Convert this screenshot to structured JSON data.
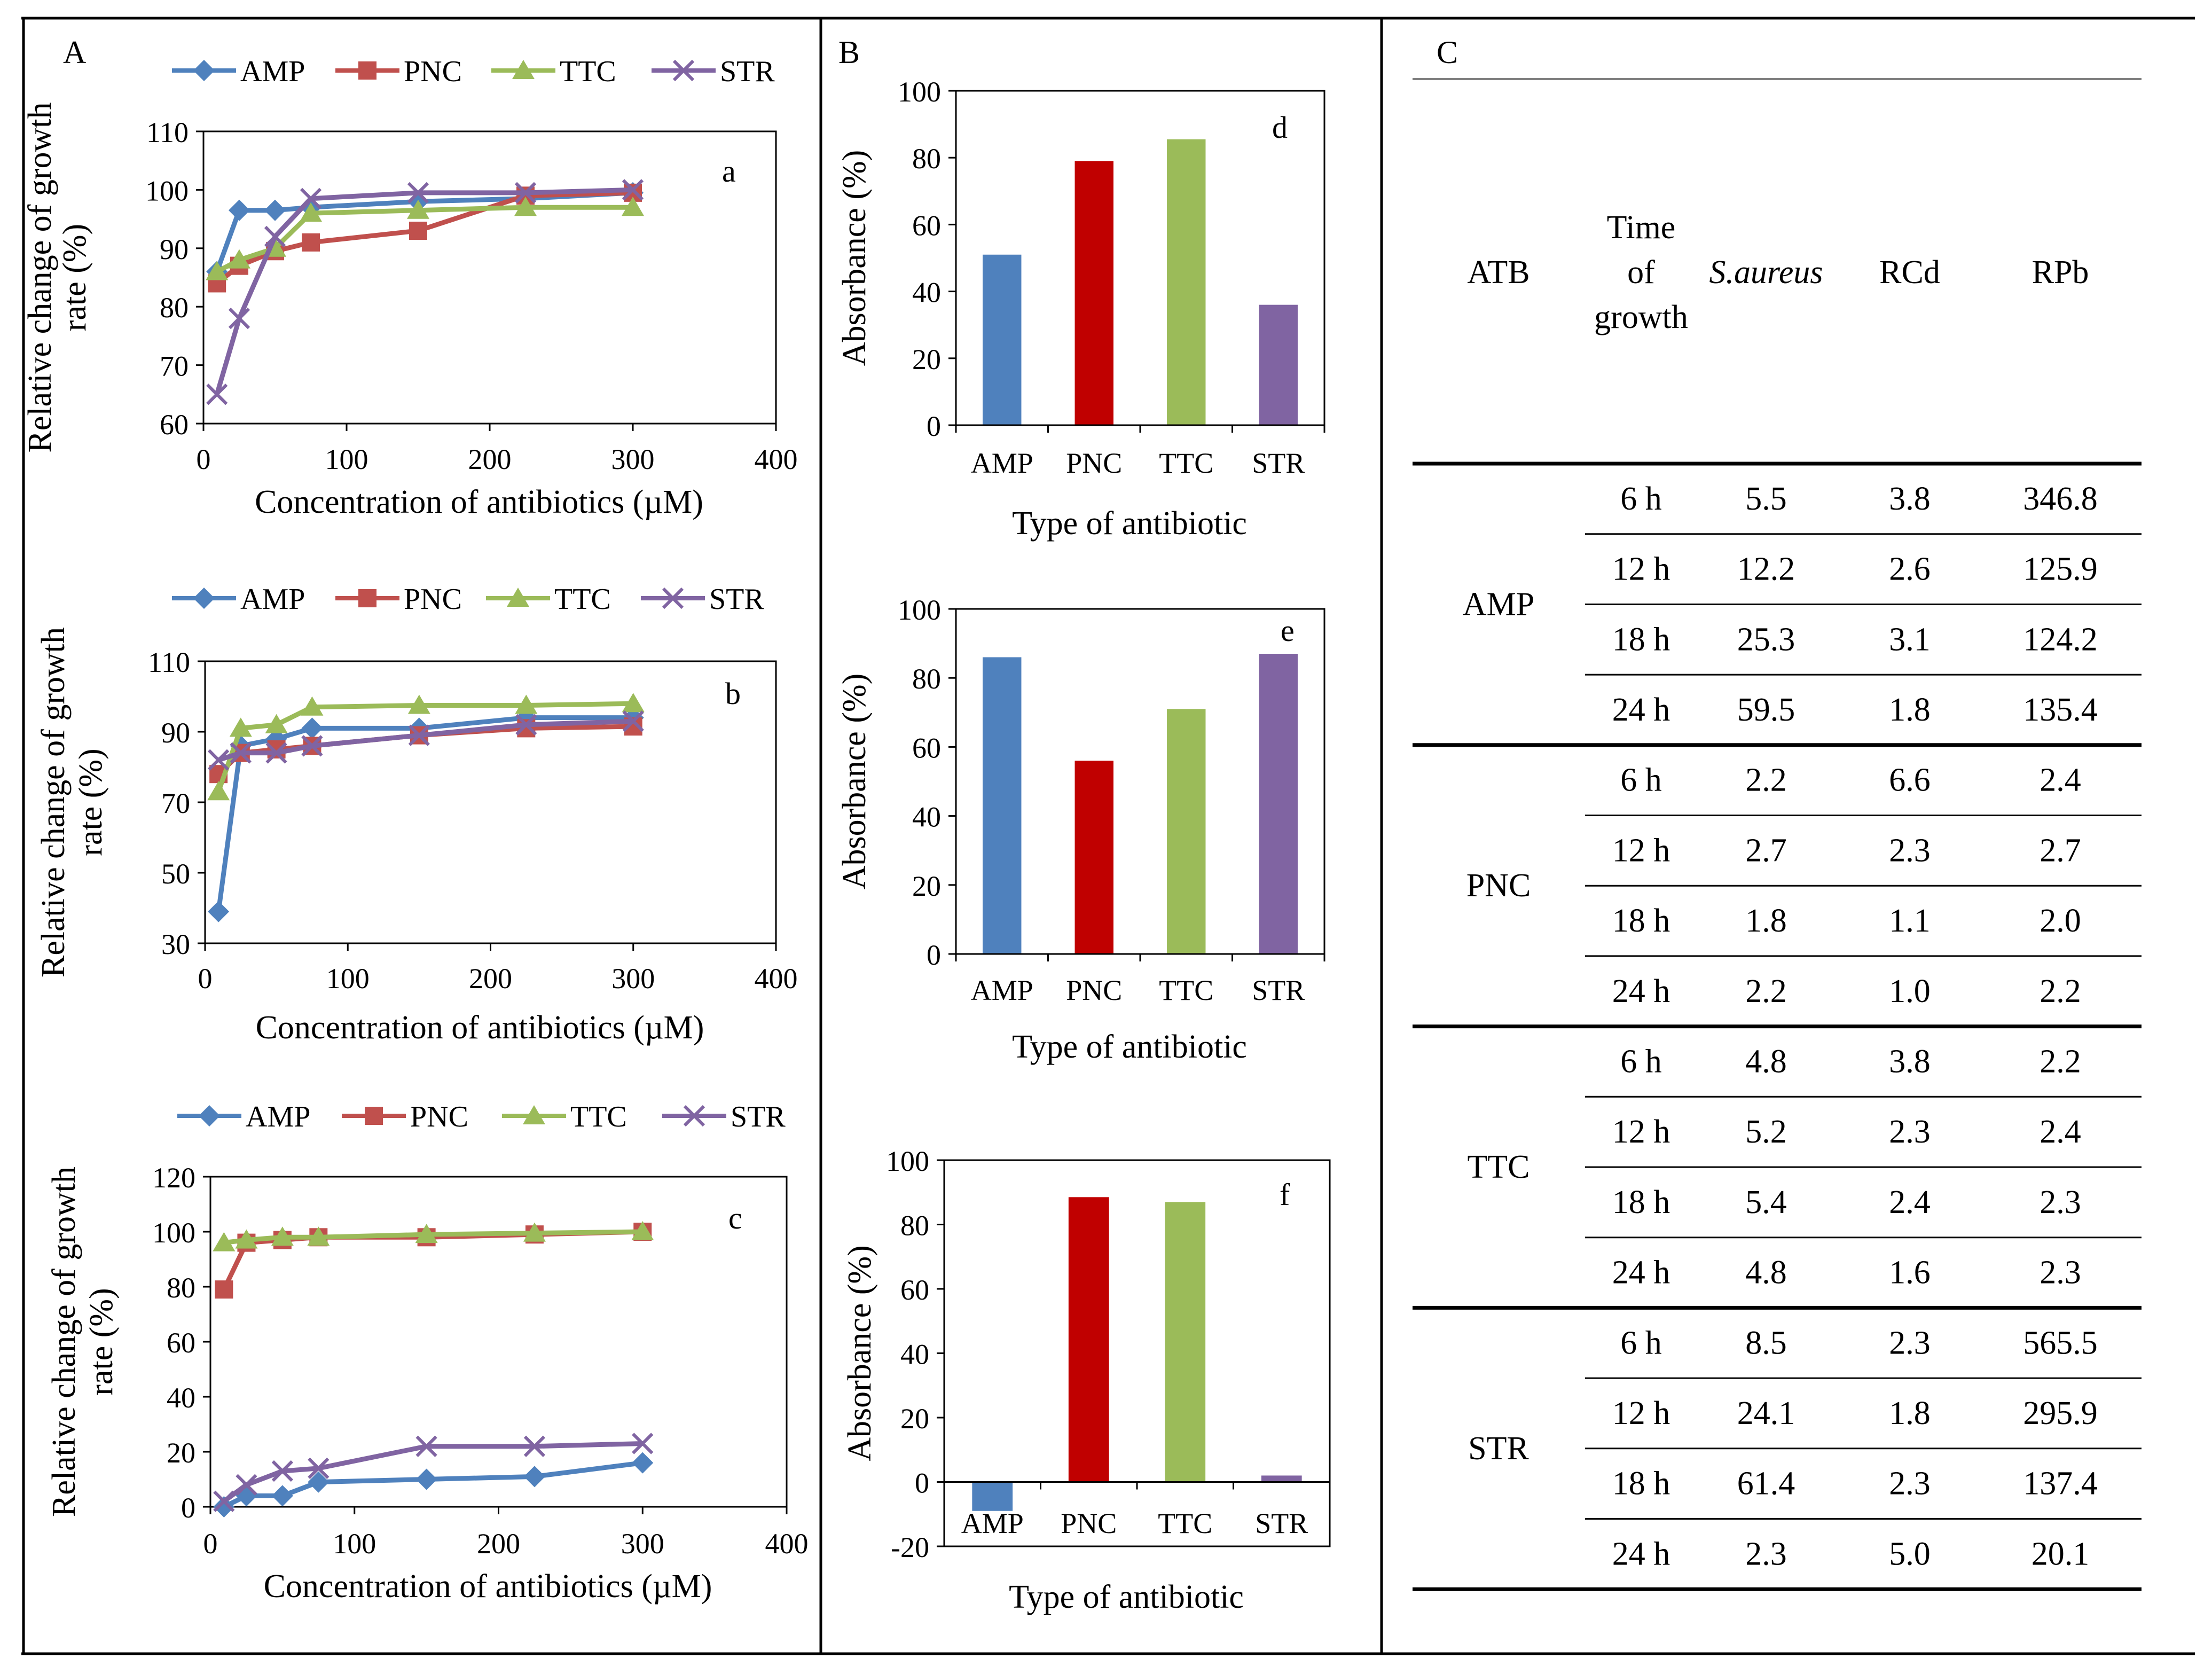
{
  "panel_labels": {
    "A": "A",
    "B": "B",
    "C": "C"
  },
  "colors": {
    "AMP": "#4F81BD",
    "PNC": "#C0504D",
    "TTC": "#9BBB59",
    "STR": "#8064A2",
    "bar_PNC": "#C00000",
    "bar_TTC": "#9BBB59"
  },
  "chart_data": [
    {
      "id": "a",
      "type": "line",
      "label": "a",
      "xlabel": "Concentration of antibiotics (µM)",
      "ylabel": [
        "Relative change of growth",
        "rate (%)"
      ],
      "xlim": [
        0,
        400
      ],
      "xticks": [
        0,
        100,
        200,
        300,
        400
      ],
      "ylim": [
        60,
        110
      ],
      "yticks": [
        60,
        70,
        80,
        90,
        100,
        110
      ],
      "legend": [
        "AMP",
        "PNC",
        "TTC",
        "STR"
      ],
      "series": [
        {
          "name": "AMP",
          "marker": "diamond",
          "x": [
            9.4,
            25,
            50,
            75,
            150,
            225,
            300
          ],
          "y": [
            86,
            96.5,
            96.5,
            97,
            98,
            98.5,
            99.5
          ]
        },
        {
          "name": "PNC",
          "marker": "square",
          "x": [
            9.4,
            25,
            50,
            75,
            150,
            225,
            300
          ],
          "y": [
            84,
            87,
            89.5,
            91,
            93,
            99,
            99.5
          ]
        },
        {
          "name": "TTC",
          "marker": "triangle",
          "x": [
            9.4,
            25,
            50,
            75,
            150,
            225,
            300
          ],
          "y": [
            86,
            88,
            90,
            96,
            96.5,
            97,
            97
          ]
        },
        {
          "name": "STR",
          "marker": "x",
          "x": [
            9.4,
            25,
            50,
            75,
            150,
            225,
            300
          ],
          "y": [
            65,
            78,
            92,
            98.5,
            99.5,
            99.5,
            100
          ]
        }
      ]
    },
    {
      "id": "b",
      "type": "line",
      "label": "b",
      "xlabel": "Concentration of antibiotics (µM)",
      "ylabel": [
        "Relative change of growth",
        "rate (%)"
      ],
      "xlim": [
        0,
        400
      ],
      "xticks": [
        0,
        100,
        200,
        300,
        400
      ],
      "ylim": [
        30,
        110
      ],
      "yticks": [
        30,
        50,
        70,
        90,
        110
      ],
      "legend": [
        "AMP",
        "PNC",
        "TTC",
        "STR"
      ],
      "series": [
        {
          "name": "AMP",
          "marker": "diamond",
          "x": [
            9.4,
            25,
            50,
            75,
            150,
            225,
            300
          ],
          "y": [
            39,
            86,
            88,
            91,
            91,
            94,
            94
          ]
        },
        {
          "name": "PNC",
          "marker": "square",
          "x": [
            9.4,
            25,
            50,
            75,
            150,
            225,
            300
          ],
          "y": [
            78,
            84,
            85,
            86,
            89,
            91,
            91.5
          ]
        },
        {
          "name": "TTC",
          "marker": "triangle",
          "x": [
            9.4,
            25,
            50,
            75,
            150,
            225,
            300
          ],
          "y": [
            73,
            91,
            92,
            97,
            97.5,
            97.5,
            98
          ]
        },
        {
          "name": "STR",
          "marker": "x",
          "x": [
            9.4,
            25,
            50,
            75,
            150,
            225,
            300
          ],
          "y": [
            82,
            84,
            84,
            86,
            89,
            92,
            93
          ]
        }
      ]
    },
    {
      "id": "c",
      "type": "line",
      "label": "c",
      "xlabel": "Concentration of antibiotics (µM)",
      "ylabel": [
        "Relative change of growth",
        "rate (%)"
      ],
      "xlim": [
        0,
        400
      ],
      "xticks": [
        0,
        100,
        200,
        300,
        400
      ],
      "ylim": [
        0,
        120
      ],
      "yticks": [
        0,
        20,
        40,
        60,
        80,
        100,
        120
      ],
      "legend": [
        "AMP",
        "PNC",
        "TTC",
        "STR"
      ],
      "series": [
        {
          "name": "AMP",
          "marker": "diamond",
          "x": [
            9.4,
            25,
            50,
            75,
            150,
            225,
            300
          ],
          "y": [
            0,
            4,
            4,
            9,
            10,
            11,
            16
          ]
        },
        {
          "name": "PNC",
          "marker": "square",
          "x": [
            9.4,
            25,
            50,
            75,
            150,
            225,
            300
          ],
          "y": [
            79,
            96,
            97,
            98,
            98,
            99,
            100
          ]
        },
        {
          "name": "TTC",
          "marker": "triangle",
          "x": [
            9.4,
            25,
            50,
            75,
            150,
            225,
            300
          ],
          "y": [
            96,
            97,
            98,
            98,
            99,
            99.5,
            100
          ]
        },
        {
          "name": "STR",
          "marker": "x",
          "x": [
            9.4,
            25,
            50,
            75,
            150,
            225,
            300
          ],
          "y": [
            2,
            8,
            13,
            14,
            22,
            22,
            23
          ]
        }
      ]
    },
    {
      "id": "d",
      "type": "bar",
      "label": "d",
      "xlabel": "Type of antibiotic",
      "ylabel": "Absorbance (%)",
      "categories": [
        "AMP",
        "PNC",
        "TTC",
        "STR"
      ],
      "values": [
        51,
        79,
        85.5,
        36
      ],
      "ylim": [
        0,
        100
      ],
      "yticks": [
        0,
        20,
        40,
        60,
        80,
        100
      ]
    },
    {
      "id": "e",
      "type": "bar",
      "label": "e",
      "xlabel": "Type of antibiotic",
      "ylabel": "Absorbance (%)",
      "categories": [
        "AMP",
        "PNC",
        "TTC",
        "STR"
      ],
      "values": [
        86,
        56,
        71,
        87
      ],
      "ylim": [
        0,
        100
      ],
      "yticks": [
        0,
        20,
        40,
        60,
        80,
        100
      ]
    },
    {
      "id": "f",
      "type": "bar",
      "label": "f",
      "xlabel": "Type of antibiotic",
      "ylabel": "Absorbance (%)",
      "categories": [
        "AMP",
        "PNC",
        "TTC",
        "STR"
      ],
      "values": [
        -9,
        88.5,
        87,
        2
      ],
      "ylim": [
        -20,
        100
      ],
      "yticks": [
        -20,
        0,
        20,
        40,
        60,
        80,
        100
      ]
    },
    {
      "id": "table",
      "type": "table",
      "headers": {
        "atb": "ATB",
        "time": [
          "Time",
          "of",
          "growth"
        ],
        "saureus": "S.aureus",
        "rcd": "RCd",
        "rpb": "RPb"
      },
      "groups": [
        {
          "atb": "AMP",
          "rows": [
            [
              "6 h",
              "5.5",
              "3.8",
              "346.8"
            ],
            [
              "12 h",
              "12.2",
              "2.6",
              "125.9"
            ],
            [
              "18 h",
              "25.3",
              "3.1",
              "124.2"
            ],
            [
              "24 h",
              "59.5",
              "1.8",
              "135.4"
            ]
          ]
        },
        {
          "atb": "PNC",
          "rows": [
            [
              "6 h",
              "2.2",
              "6.6",
              "2.4"
            ],
            [
              "12 h",
              "2.7",
              "2.3",
              "2.7"
            ],
            [
              "18 h",
              "1.8",
              "1.1",
              "2.0"
            ],
            [
              "24 h",
              "2.2",
              "1.0",
              "2.2"
            ]
          ]
        },
        {
          "atb": "TTC",
          "rows": [
            [
              "6 h",
              "4.8",
              "3.8",
              "2.2"
            ],
            [
              "12 h",
              "5.2",
              "2.3",
              "2.4"
            ],
            [
              "18 h",
              "5.4",
              "2.4",
              "2.3"
            ],
            [
              "24 h",
              "4.8",
              "1.6",
              "2.3"
            ]
          ]
        },
        {
          "atb": "STR",
          "rows": [
            [
              "6 h",
              "8.5",
              "2.3",
              "565.5"
            ],
            [
              "12 h",
              "24.1",
              "1.8",
              "295.9"
            ],
            [
              "18 h",
              "61.4",
              "2.3",
              "137.4"
            ],
            [
              "24 h",
              "2.3",
              "5.0",
              "20.1"
            ]
          ]
        }
      ]
    }
  ]
}
